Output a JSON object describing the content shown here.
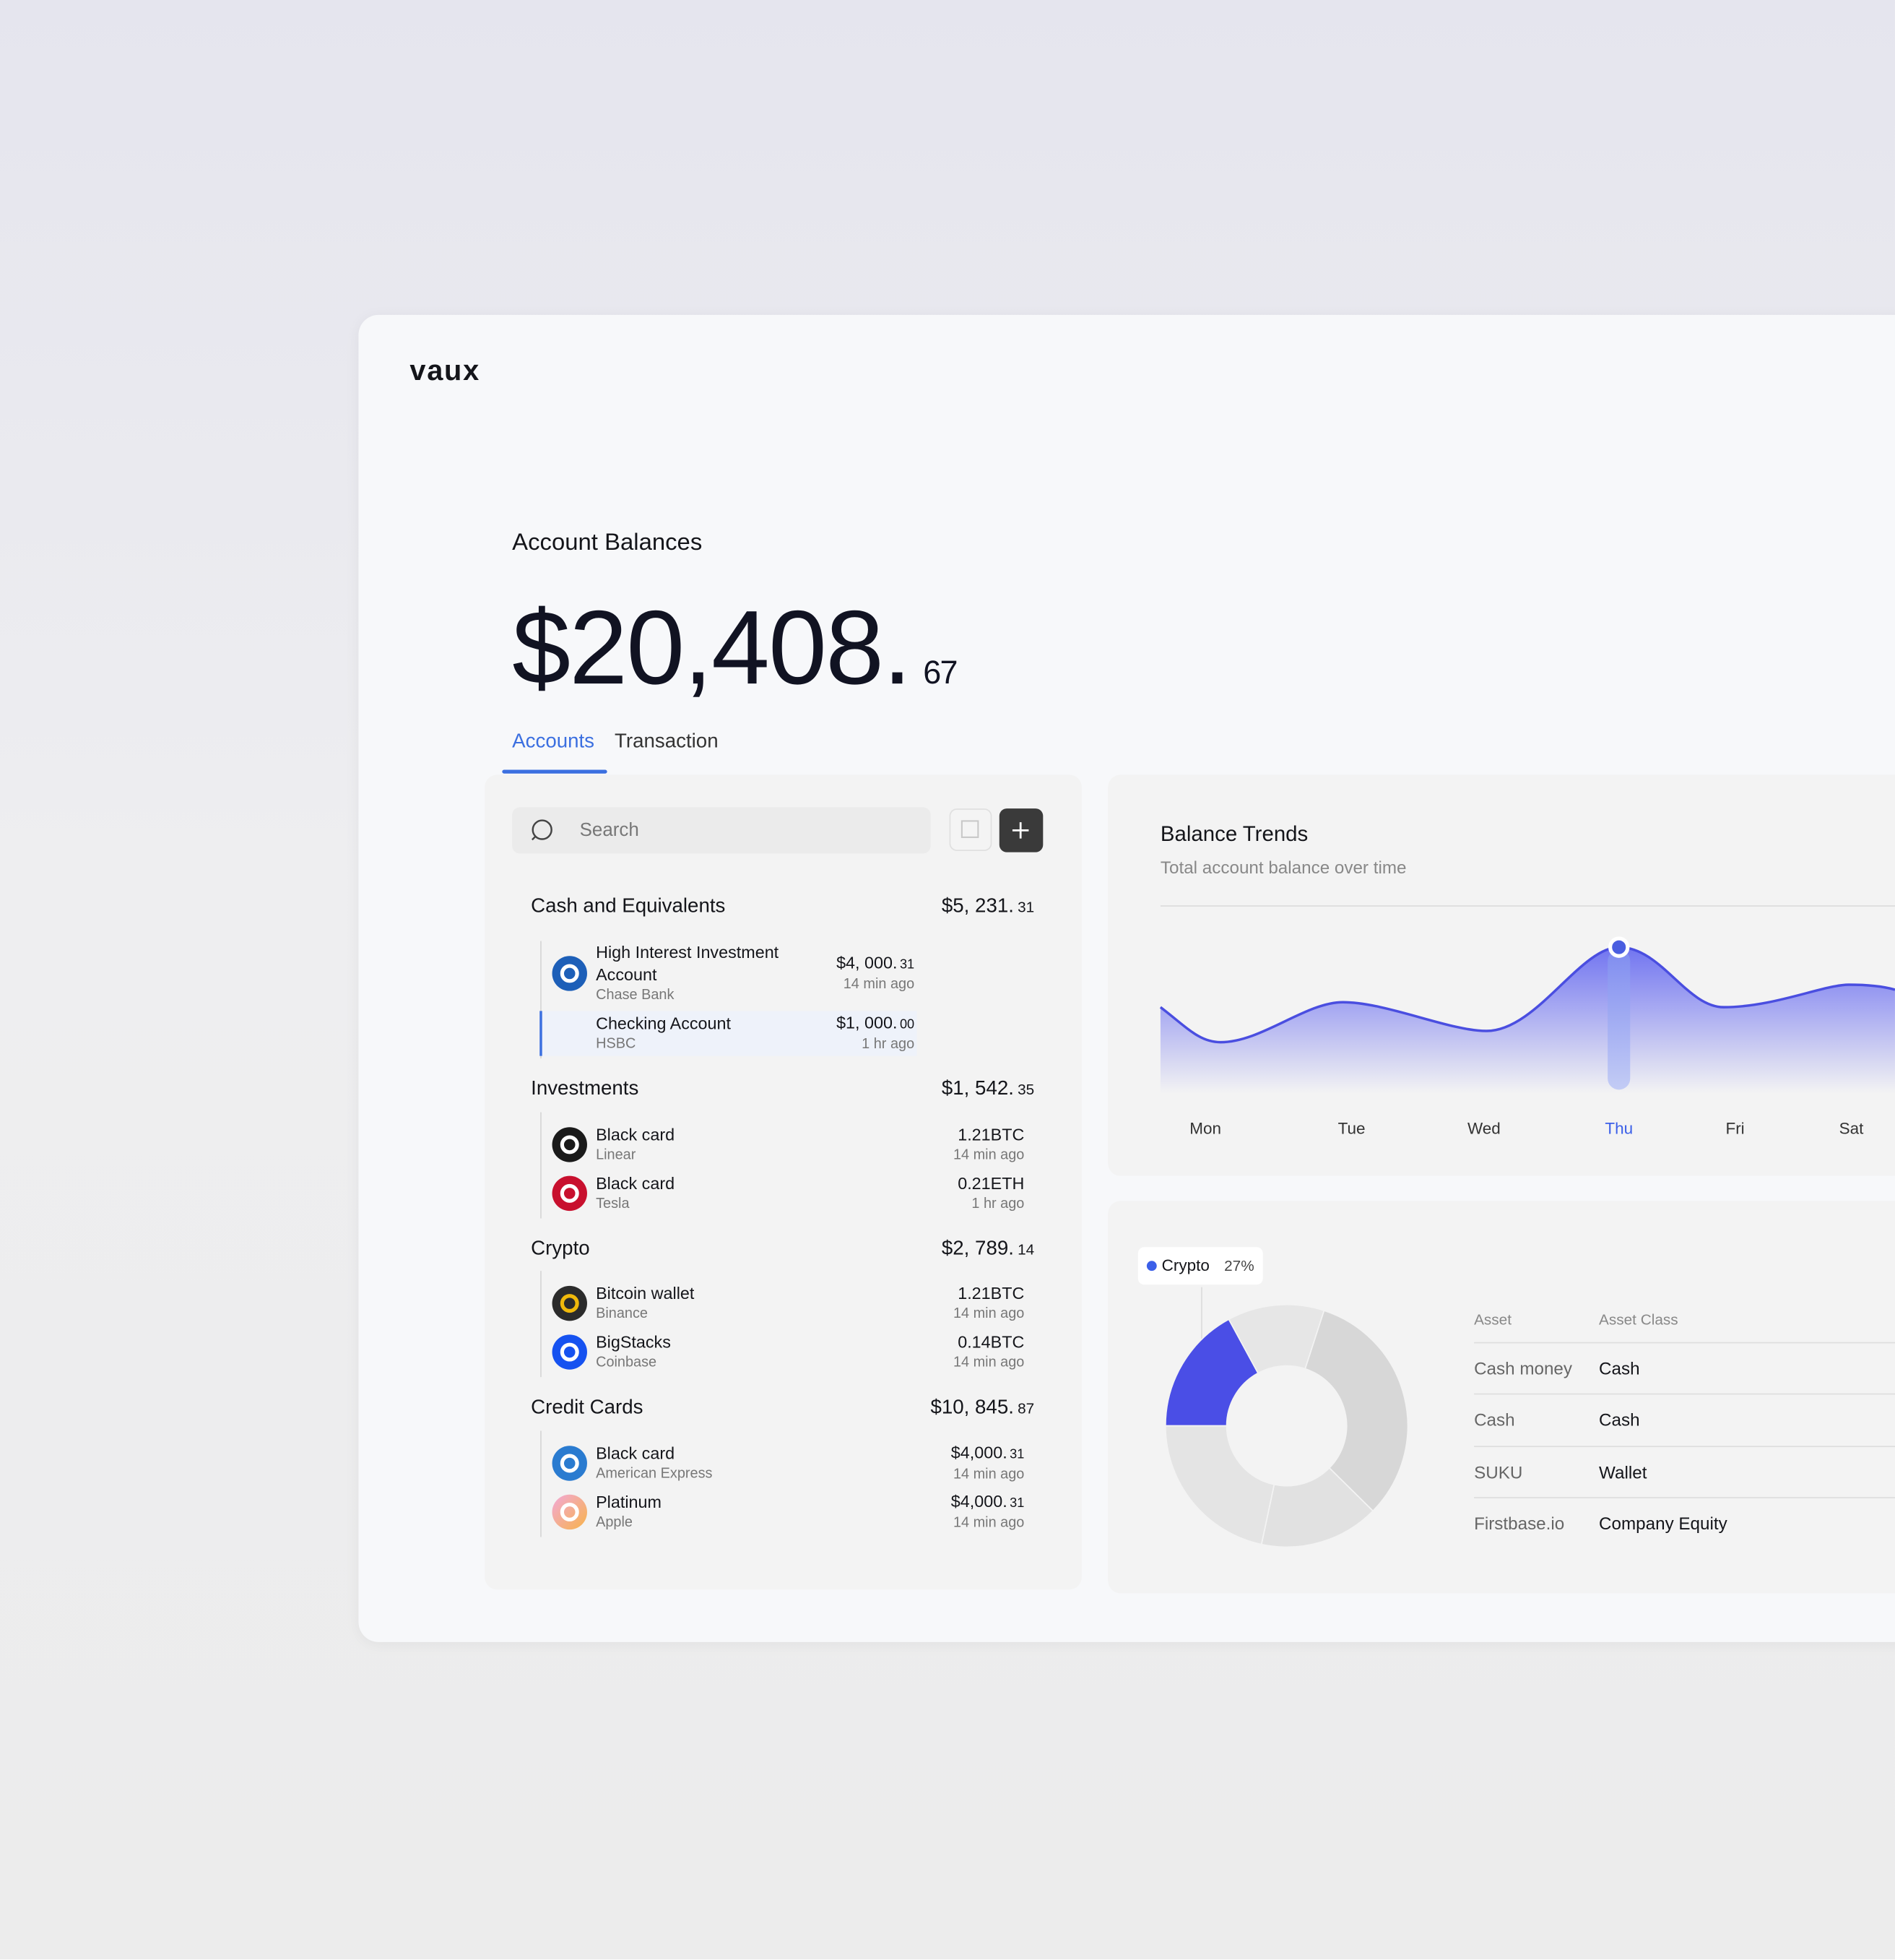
{
  "logo": "vaux",
  "header": {
    "title": "Account Balances",
    "balance": "$20,408.",
    "balance_cents": "67"
  },
  "tabs": [
    "Accounts",
    "Transaction"
  ],
  "search": {
    "placeholder": "Search"
  },
  "groups": [
    {
      "name": "Cash and Equivalents",
      "total": "$5, 231.",
      "total_cents": "31",
      "items": [
        {
          "name": "High Interest Investment Account",
          "institution": "Chase Bank",
          "amount": "$4, 000.",
          "cents": "31",
          "time": "14 min ago"
        },
        {
          "name": "Checking Account",
          "institution": "HSBC",
          "amount": "$1, 000.",
          "cents": "00",
          "time": "1 hr ago"
        }
      ]
    },
    {
      "name": "Investments",
      "total": "$1, 542.",
      "total_cents": "35",
      "items": [
        {
          "name": "Black card",
          "institution": "Linear",
          "amount": "1.21BTC",
          "time": "14 min ago"
        },
        {
          "name": "Black card",
          "institution": "Tesla",
          "amount": "0.21ETH",
          "time": "1 hr ago"
        }
      ]
    },
    {
      "name": "Crypto",
      "total": "$2, 789.",
      "total_cents": "14",
      "items": [
        {
          "name": "Bitcoin wallet",
          "institution": "Binance",
          "amount": "1.21BTC",
          "time": "14 min ago"
        },
        {
          "name": "BigStacks",
          "institution": "Coinbase",
          "amount": "0.14BTC",
          "time": "14 min ago"
        }
      ]
    },
    {
      "name": "Credit Cards",
      "total": "$10, 845.",
      "total_cents": "87",
      "items": [
        {
          "name": "Black card",
          "institution": "American Express",
          "amount": "$4,000.",
          "cents": "31",
          "time": "14 min ago"
        },
        {
          "name": "Platinum",
          "institution": "Apple",
          "amount": "$4,000.",
          "cents": "31",
          "time": "14 min ago"
        }
      ]
    }
  ],
  "trends": {
    "title": "Balance Trends",
    "subtitle": "Total account balance over time",
    "days": [
      "Mon",
      "Tue",
      "Wed",
      "Thu",
      "Fri",
      "Sat"
    ],
    "active_index": 3
  },
  "allocation": {
    "legend": {
      "name": "Crypto",
      "value": "27%"
    },
    "table": {
      "columns": [
        "Asset",
        "Asset Class"
      ],
      "rows": [
        [
          "Cash money",
          "Cash"
        ],
        [
          "Cash",
          "Cash"
        ],
        [
          "SUKU",
          "Wallet"
        ],
        [
          "Firstbase.io",
          "Company Equity"
        ]
      ]
    }
  }
}
